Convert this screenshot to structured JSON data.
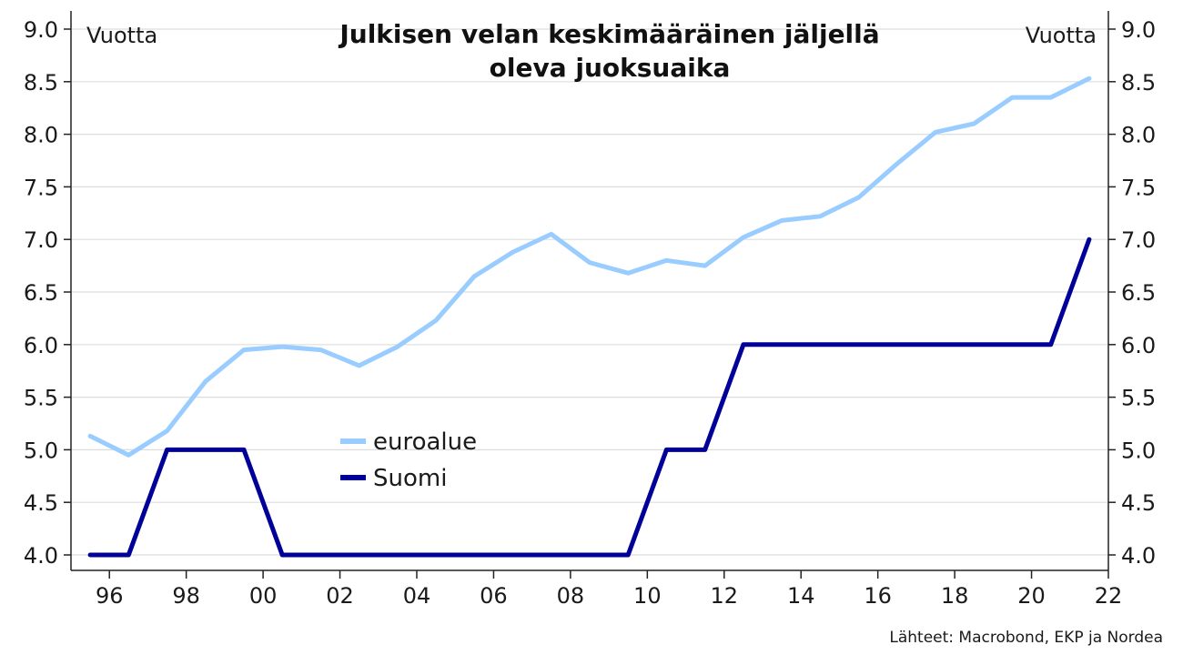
{
  "chart_data": {
    "type": "line",
    "title_lines": [
      "Julkisen velan keskimääräinen jäljellä",
      "oleva juoksuaika"
    ],
    "ylabel_left": "Vuotta",
    "ylabel_right": "Vuotta",
    "ylim": [
      4.0,
      9.0
    ],
    "xlim": [
      1995,
      2022
    ],
    "y_ticks": [
      4.0,
      4.5,
      5.0,
      5.5,
      6.0,
      6.5,
      7.0,
      7.5,
      8.0,
      8.5,
      9.0
    ],
    "y_tick_labels": [
      "4.0",
      "4.5",
      "5.0",
      "5.5",
      "6.0",
      "6.5",
      "7.0",
      "7.5",
      "8.0",
      "8.5",
      "9.0"
    ],
    "x_ticks": [
      1996,
      1998,
      2000,
      2002,
      2004,
      2006,
      2008,
      2010,
      2012,
      2014,
      2016,
      2018,
      2020,
      2022
    ],
    "x_tick_labels": [
      "96",
      "98",
      "00",
      "02",
      "04",
      "06",
      "08",
      "10",
      "12",
      "14",
      "16",
      "18",
      "20",
      "22"
    ],
    "grid": true,
    "legend_position": "center-left",
    "x": [
      1995.5,
      1996.5,
      1997.5,
      1998.5,
      1999.5,
      2000.5,
      2001.5,
      2002.5,
      2003.5,
      2004.5,
      2005.5,
      2006.5,
      2007.5,
      2008.5,
      2009.5,
      2010.5,
      2011.5,
      2012.5,
      2013.5,
      2014.5,
      2015.5,
      2016.5,
      2017.5,
      2018.5,
      2019.5,
      2020.5,
      2021.5
    ],
    "series": [
      {
        "name": "euroalue",
        "color": "#99ccff",
        "values": [
          5.13,
          4.95,
          5.18,
          5.65,
          5.95,
          5.98,
          5.95,
          5.8,
          5.98,
          6.23,
          6.65,
          6.88,
          7.05,
          6.78,
          6.68,
          6.8,
          6.75,
          7.02,
          7.18,
          7.22,
          7.4,
          7.72,
          8.02,
          8.1,
          8.35,
          8.35,
          8.53
        ]
      },
      {
        "name": "Suomi",
        "color": "#000099",
        "values": [
          4.0,
          4.0,
          5.0,
          5.0,
          5.0,
          4.0,
          4.0,
          4.0,
          4.0,
          4.0,
          4.0,
          4.0,
          4.0,
          4.0,
          4.0,
          5.0,
          5.0,
          6.0,
          6.0,
          6.0,
          6.0,
          6.0,
          6.0,
          6.0,
          6.0,
          6.0,
          7.0
        ]
      }
    ],
    "source": "Lähteet: Macrobond, EKP ja Nordea"
  }
}
